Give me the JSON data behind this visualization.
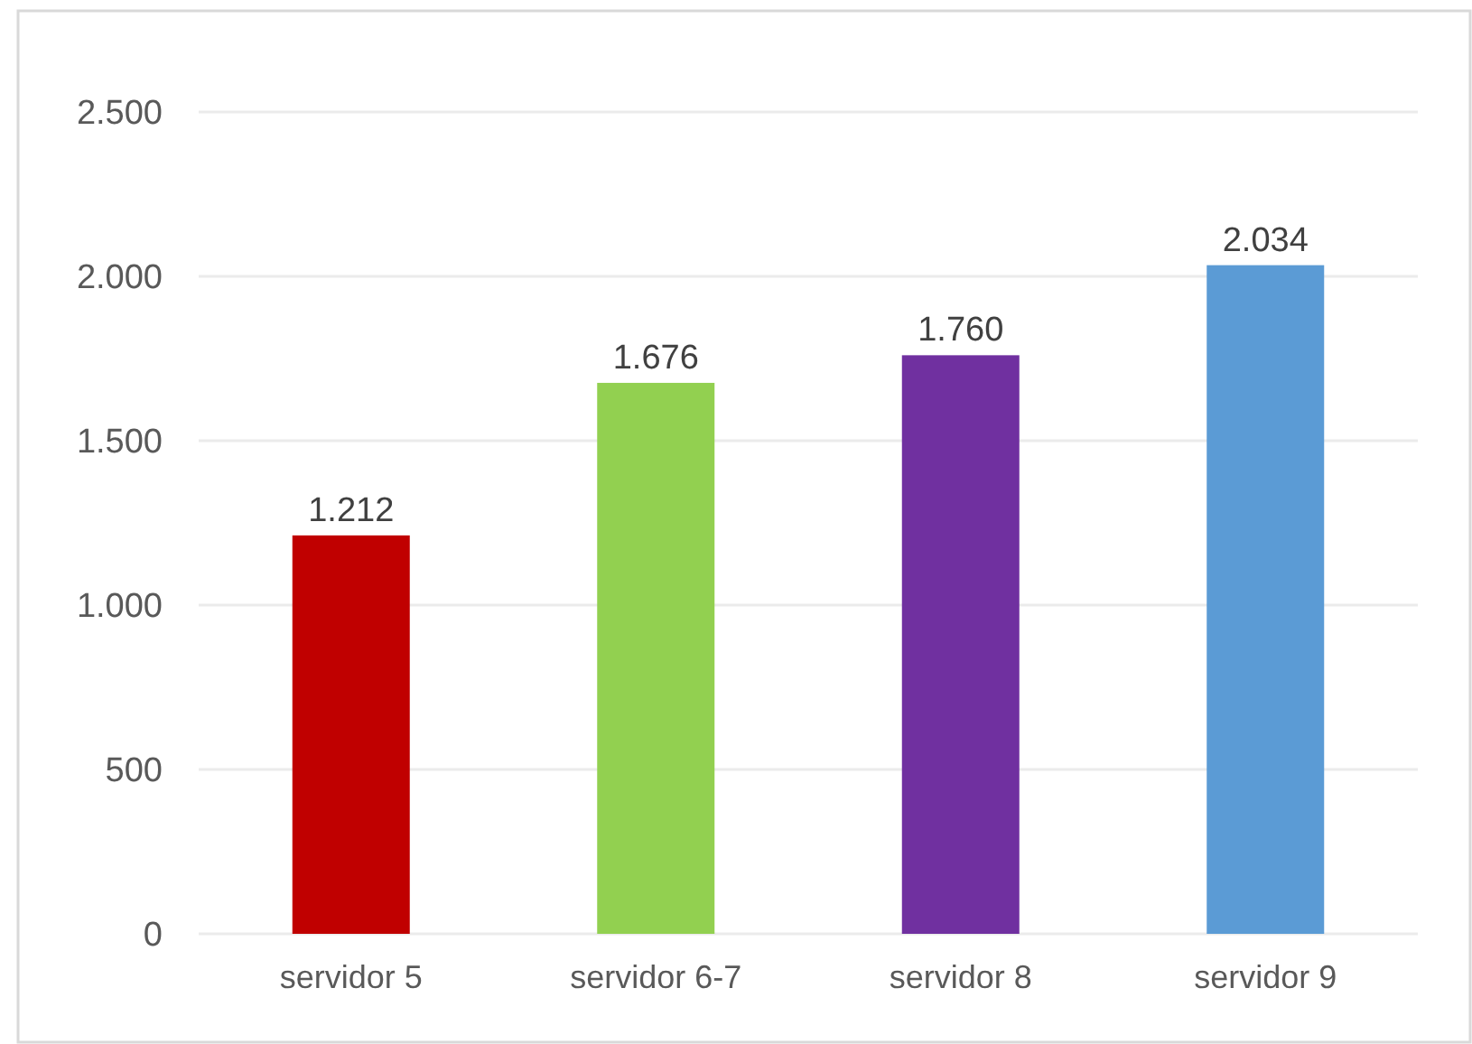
{
  "chart_data": {
    "type": "bar",
    "categories": [
      "servidor 5",
      "servidor 6-7",
      "servidor 8",
      "servidor 9"
    ],
    "values": [
      1212,
      1676,
      1760,
      2034
    ],
    "colors": [
      "#c00000",
      "#92d050",
      "#7030a0",
      "#5b9bd5"
    ],
    "ylim": [
      0,
      2500
    ],
    "yticks": [
      0,
      500,
      {
        "value": 1000,
        "label": "1.000"
      },
      {
        "value": 1500,
        "label": "1.500"
      },
      {
        "value": 2000,
        "label": "2.000"
      },
      {
        "value": 2500,
        "label": "2.500"
      }
    ],
    "grid": "y",
    "value_labels": [
      "1.212",
      "1.676",
      "1.760",
      "2.034"
    ]
  }
}
